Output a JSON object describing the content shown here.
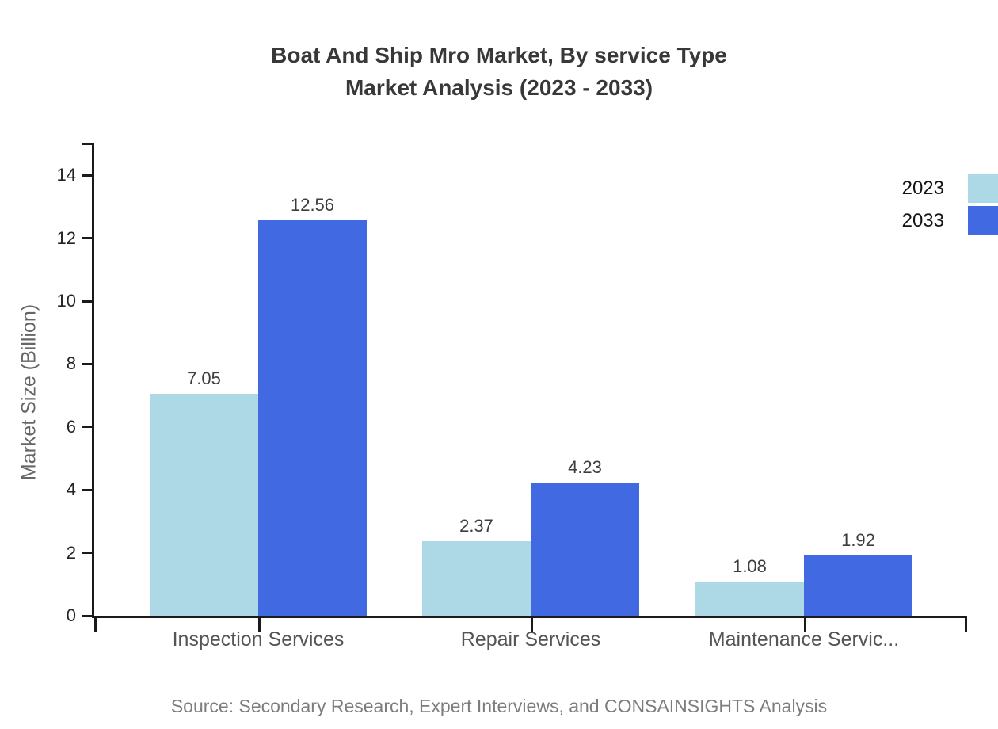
{
  "title": {
    "line1": "Boat And Ship Mro Market, By service Type",
    "line2": "Market Analysis (2023 - 2033)"
  },
  "y_axis_title": "Market Size (Billion)",
  "source": "Source: Secondary Research, Expert Interviews, and CONSAINSIGHTS Analysis",
  "legend": [
    {
      "label": "2023",
      "color": "#ADD8E6"
    },
    {
      "label": "2033",
      "color": "#4169E1"
    }
  ],
  "chart_data": {
    "type": "bar",
    "title": "Boat And Ship Mro Market, By service Type Market Analysis (2023 - 2033)",
    "categories": [
      "Inspection Services",
      "Repair Services",
      "Maintenance Servic..."
    ],
    "series": [
      {
        "name": "2023",
        "color": "#ADD8E6",
        "values": [
          7.05,
          2.37,
          1.08
        ]
      },
      {
        "name": "2033",
        "color": "#4169E1",
        "values": [
          12.56,
          4.23,
          1.92
        ]
      }
    ],
    "xlabel": "",
    "ylabel": "Market Size (Billion)",
    "ylim": [
      0,
      15
    ],
    "yticks": [
      0,
      2,
      4,
      6,
      8,
      10,
      12,
      14
    ],
    "grid": false,
    "legend_position": "top-right",
    "value_labels": true,
    "value_label_format": "2-decimals"
  }
}
